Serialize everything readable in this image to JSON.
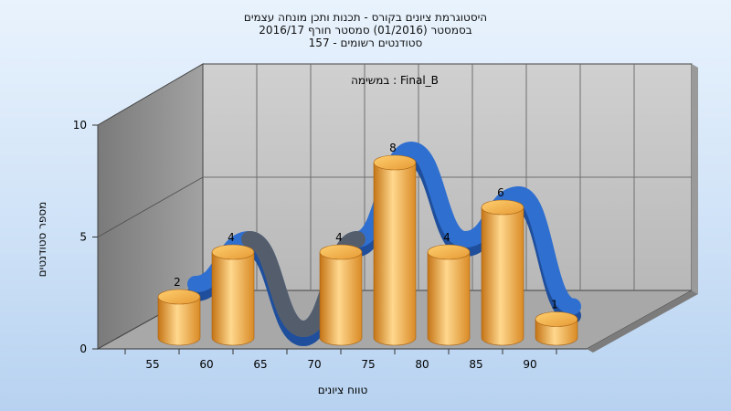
{
  "chart_data": {
    "type": "bar",
    "title_lines": [
      "היסטוגרמת ציונים בקורס - תכנות ותכן מונחה עצמים",
      "בסמסטר  (01/2016)  סמסטר חורף 2016/17",
      "סטודנטים רשומים - 157"
    ],
    "inner_title": "במשימה : Final_B",
    "xlabel": "טווח ציונים",
    "ylabel": "מספר סטודנטים",
    "categories": [
      "55",
      "60",
      "65",
      "70",
      "75",
      "80",
      "85",
      "90"
    ],
    "values": [
      2,
      4,
      0,
      4,
      8,
      4,
      6,
      1
    ],
    "value_labels": [
      "2",
      "4",
      "",
      "4",
      "8",
      "4",
      "6",
      "1"
    ],
    "y_ticks": [
      "0",
      "5",
      "10"
    ],
    "ylim": [
      0,
      10
    ],
    "grid": true,
    "smooth_curve": true,
    "colors": {
      "bar": "#f0a83c",
      "bar_light": "#ffd58a",
      "bar_dark": "#c9781a",
      "curve": "#2f6fd0",
      "curve_shadow": "#5a5a5a",
      "back_wall": "#c4c4c4",
      "side_wall": "#8e8e8e",
      "floor": "#a9a9a9"
    }
  }
}
